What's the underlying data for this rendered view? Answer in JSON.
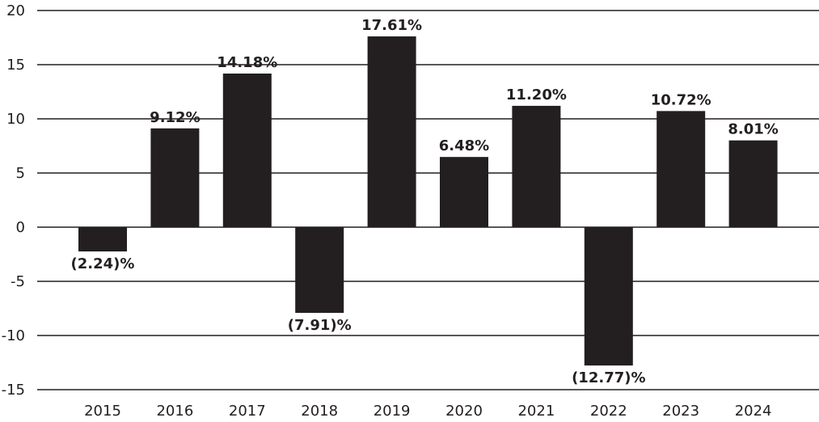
{
  "chart_data": {
    "type": "bar",
    "title": "",
    "xlabel": "",
    "ylabel": "",
    "categories": [
      "2015",
      "2016",
      "2017",
      "2018",
      "2019",
      "2020",
      "2021",
      "2022",
      "2023",
      "2024"
    ],
    "values": [
      -2.24,
      9.12,
      14.18,
      -7.91,
      17.61,
      6.48,
      11.2,
      -12.77,
      10.72,
      8.01
    ],
    "data_labels": [
      "(2.24)%",
      "9.12%",
      "14.18%",
      "(7.91)%",
      "17.61%",
      "6.48%",
      "11.20%",
      "(12.77)%",
      "10.72%",
      "8.01%"
    ],
    "ylim": [
      -15,
      20
    ],
    "yticks": [
      20,
      15,
      10,
      5,
      0,
      -5,
      -10,
      -15
    ],
    "grid": true,
    "legend": "none",
    "bar_color": "#231f20",
    "grid_color": "#231f20"
  }
}
